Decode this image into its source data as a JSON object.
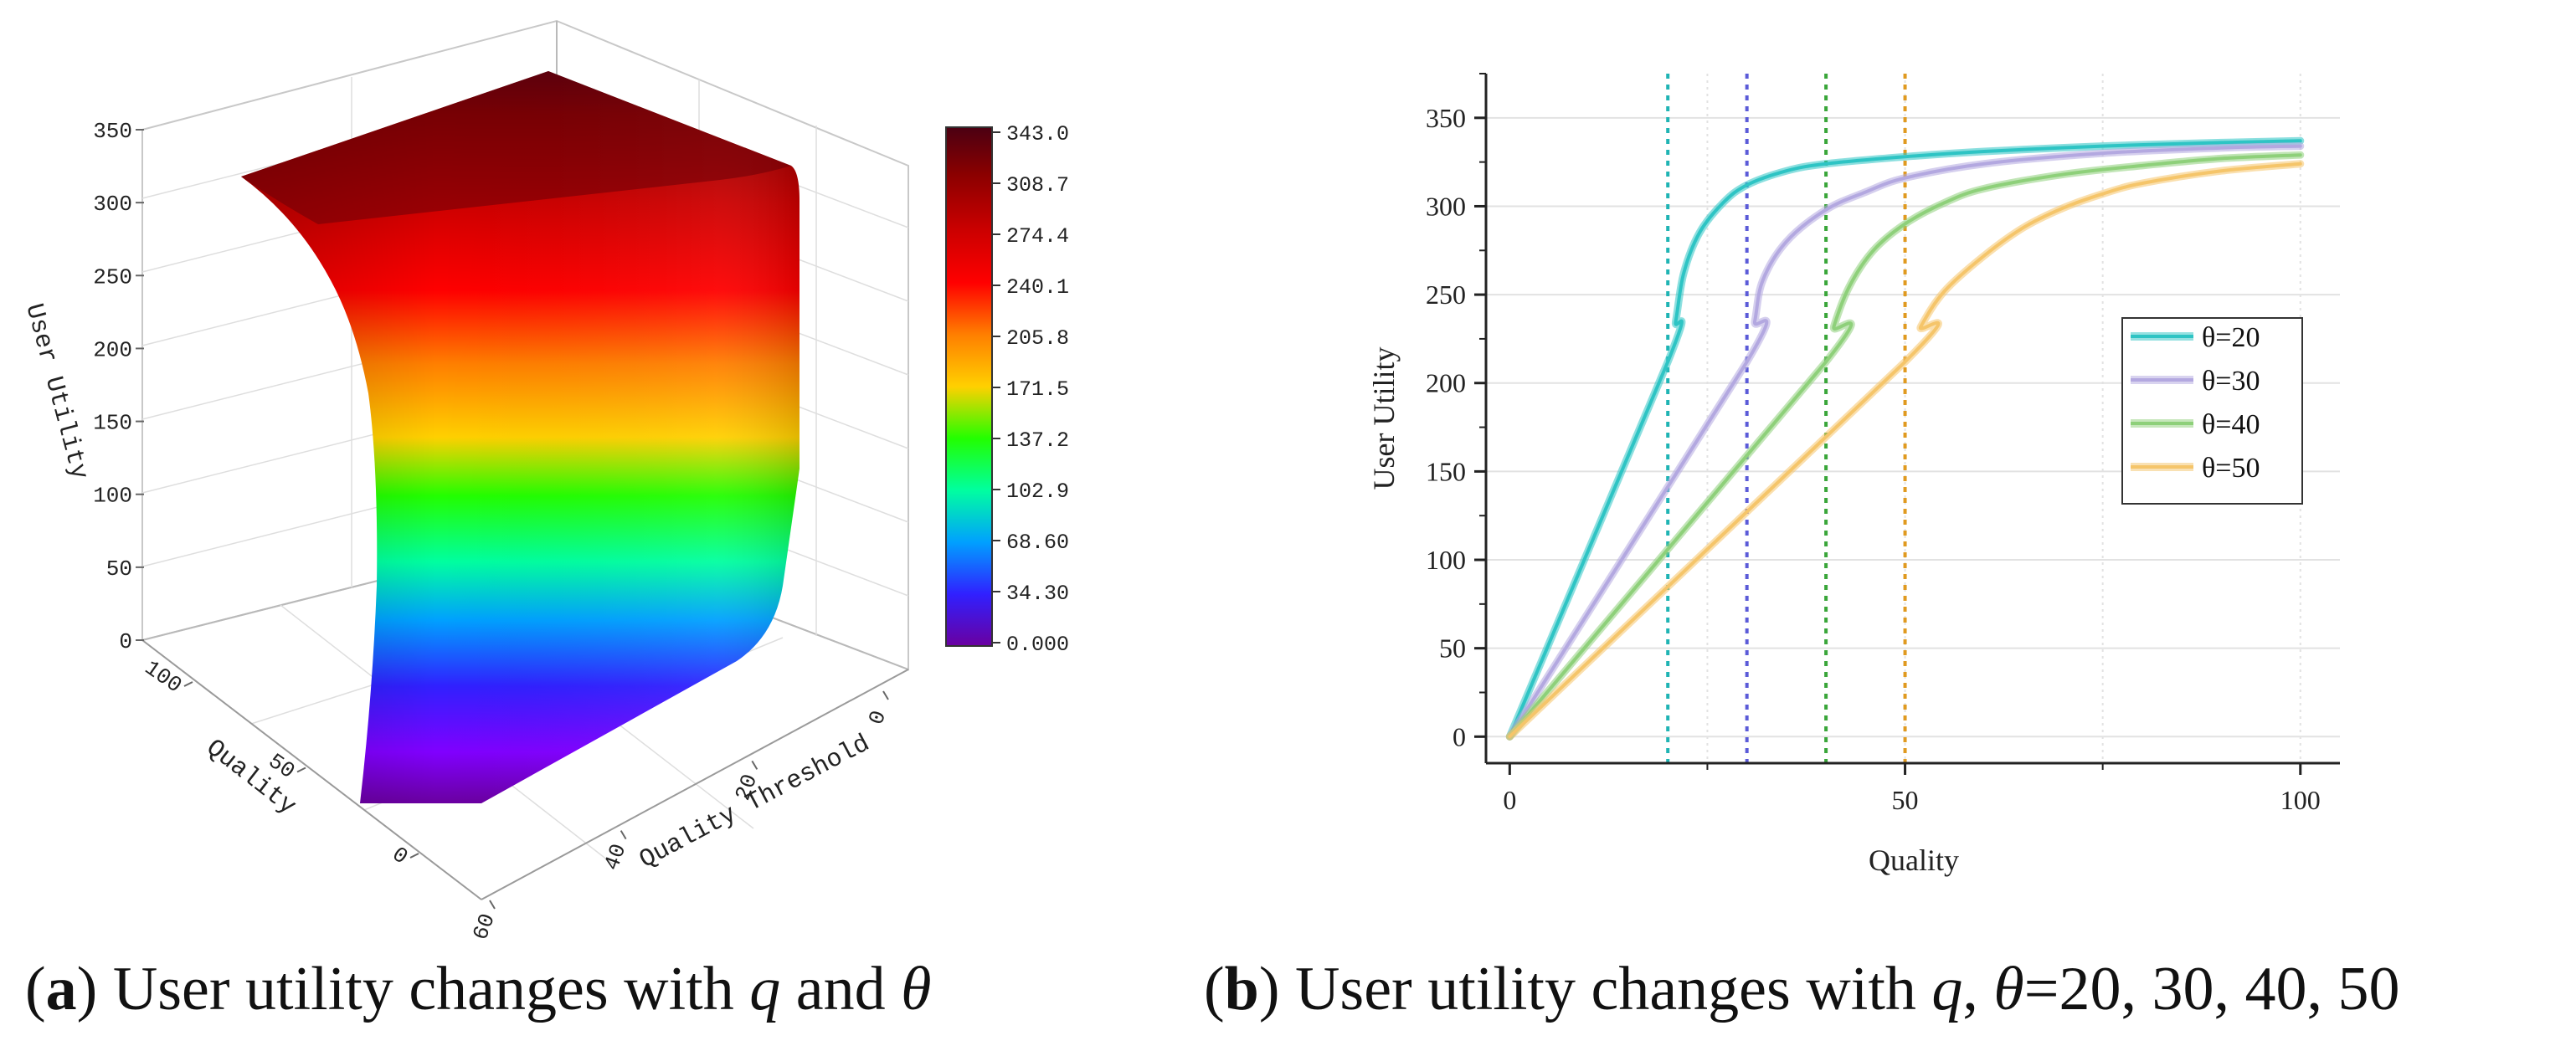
{
  "chart_data": [
    {
      "type": "surface3d",
      "panel": "a",
      "zlabel": "User Utility",
      "xlabel": "Quality",
      "ylabel": "Quality Threshold",
      "z_ticks": [
        "0",
        "50",
        "100",
        "150",
        "200",
        "250",
        "300",
        "350"
      ],
      "z_range": [
        0,
        350
      ],
      "quality_ticks": [
        "100",
        "50",
        "0"
      ],
      "quality_range": [
        0,
        100
      ],
      "threshold_ticks": [
        "0",
        "20",
        "40",
        "60"
      ],
      "threshold_range": [
        0,
        60
      ],
      "colorbar": {
        "min": 0,
        "max": 343.0,
        "labels": [
          "343.0",
          "308.7",
          "274.4",
          "240.1",
          "205.8",
          "171.5",
          "137.2",
          "102.9",
          "68.60",
          "34.30",
          "0.000"
        ],
        "colors": [
          "#4b0012",
          "#8a0000",
          "#cc0000",
          "#ff0000",
          "#ff7f00",
          "#ffd000",
          "#22ff00",
          "#00ffa0",
          "#00a0ff",
          "#3020ff",
          "#8000ff",
          "#6a00a0"
        ]
      }
    },
    {
      "type": "line",
      "panel": "b",
      "xlabel": "Quality",
      "ylabel": "User Utility",
      "xlim": [
        -3,
        105
      ],
      "ylim": [
        -15,
        375
      ],
      "x_ticks": [
        0,
        50,
        100
      ],
      "y_ticks": [
        0,
        50,
        100,
        150,
        200,
        250,
        300,
        350
      ],
      "x_tick_labels": [
        "0",
        "50",
        "100"
      ],
      "y_tick_labels": [
        "0",
        "50",
        "100",
        "150",
        "200",
        "250",
        "300",
        "350"
      ],
      "legend_position": "right",
      "series": [
        {
          "name": "θ=20",
          "theta": 20,
          "color": "#2ec4c4",
          "linecolor": "#1fb4b4",
          "points": [
            [
              0,
              0
            ],
            [
              20,
              212
            ],
            [
              21,
              235
            ],
            [
              22,
              262
            ],
            [
              24,
              285
            ],
            [
              27,
              302
            ],
            [
              30,
              312
            ],
            [
              35,
              320
            ],
            [
              40,
              324
            ],
            [
              50,
              328
            ],
            [
              60,
              331
            ],
            [
              75,
              334
            ],
            [
              90,
              336
            ],
            [
              100,
              337
            ]
          ]
        },
        {
          "name": "θ=30",
          "theta": 30,
          "color": "#b3a8e0",
          "linecolor": "#5b5bd8",
          "points": [
            [
              0,
              0
            ],
            [
              30,
              212
            ],
            [
              31,
              235
            ],
            [
              32,
              258
            ],
            [
              35,
              280
            ],
            [
              40,
              298
            ],
            [
              45,
              308
            ],
            [
              50,
              316
            ],
            [
              60,
              324
            ],
            [
              75,
              330
            ],
            [
              90,
              333
            ],
            [
              100,
              334
            ]
          ]
        },
        {
          "name": "θ=40",
          "theta": 40,
          "color": "#8ed07a",
          "linecolor": "#3aa63a",
          "points": [
            [
              0,
              0
            ],
            [
              40,
              212
            ],
            [
              41,
              232
            ],
            [
              43,
              255
            ],
            [
              46,
              275
            ],
            [
              50,
              290
            ],
            [
              55,
              302
            ],
            [
              60,
              310
            ],
            [
              70,
              318
            ],
            [
              80,
              323
            ],
            [
              90,
              327
            ],
            [
              100,
              329
            ]
          ]
        },
        {
          "name": "θ=50",
          "theta": 50,
          "color": "#f5c56a",
          "linecolor": "#e09a20",
          "points": [
            [
              0,
              0
            ],
            [
              50,
              212
            ],
            [
              52,
              232
            ],
            [
              55,
              252
            ],
            [
              60,
              272
            ],
            [
              65,
              288
            ],
            [
              70,
              299
            ],
            [
              75,
              307
            ],
            [
              80,
              313
            ],
            [
              90,
              320
            ],
            [
              100,
              324
            ]
          ]
        }
      ]
    }
  ],
  "captions": {
    "a": {
      "label": "a",
      "text": " User utility changes with ",
      "var1": "q",
      "mid": " and ",
      "var2": "θ"
    },
    "b": {
      "label": "b",
      "text": " User utility changes with ",
      "var1": "q",
      "mid": ", ",
      "var2": "θ",
      "tail": "=20, 30, 40, 50"
    }
  }
}
